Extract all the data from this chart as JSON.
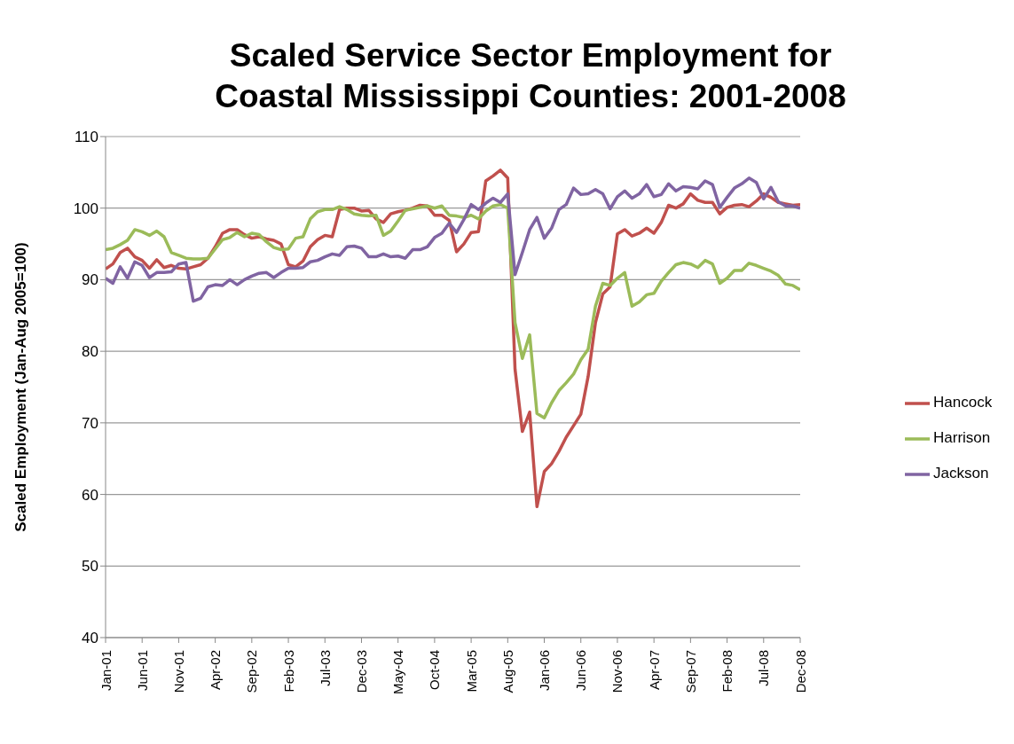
{
  "chart_data": {
    "type": "line",
    "title": "Scaled Service Sector Employment for Coastal Mississippi Counties: 2001-2008",
    "ylabel": "Scaled Employment (Jan-Aug 2005=100)",
    "categories": [
      "Jan-01",
      null,
      null,
      null,
      null,
      "Jun-01",
      null,
      null,
      null,
      null,
      "Nov-01",
      null,
      null,
      null,
      null,
      "Apr-02",
      null,
      null,
      null,
      null,
      "Sep-02",
      null,
      null,
      null,
      null,
      "Feb-03",
      null,
      null,
      null,
      null,
      "Jul-03",
      null,
      null,
      null,
      null,
      "Dec-03",
      null,
      null,
      null,
      null,
      "May-04",
      null,
      null,
      null,
      null,
      "Oct-04",
      null,
      null,
      null,
      null,
      "Mar-05",
      null,
      null,
      null,
      null,
      "Aug-05",
      null,
      null,
      null,
      null,
      "Jan-06",
      null,
      null,
      null,
      null,
      "Jun-06",
      null,
      null,
      null,
      null,
      "Nov-06",
      null,
      null,
      null,
      null,
      "Apr-07",
      null,
      null,
      null,
      null,
      "Sep-07",
      null,
      null,
      null,
      null,
      "Feb-08",
      null,
      null,
      null,
      null,
      "Jul-08",
      null,
      null,
      null,
      null,
      "Dec-08"
    ],
    "series": [
      {
        "name": "Hancock",
        "color": "#c0504d",
        "values": [
          91.5,
          92.2,
          93.8,
          94.4,
          93.2,
          92.7,
          91.6,
          92.8,
          91.7,
          92.0,
          91.6,
          91.5,
          91.8,
          92.1,
          93.0,
          94.6,
          96.5,
          97.0,
          97.0,
          96.3,
          95.8,
          96.0,
          95.7,
          95.5,
          95.0,
          92.1,
          91.8,
          92.6,
          94.6,
          95.6,
          96.2,
          96.0,
          99.8,
          100.0,
          100.0,
          99.6,
          99.7,
          98.5,
          98.0,
          99.2,
          99.5,
          99.7,
          100.0,
          100.4,
          100.3,
          99.0,
          99.0,
          98.3,
          93.9,
          95.0,
          96.6,
          96.7,
          103.8,
          104.5,
          105.3,
          104.2,
          77.5,
          68.8,
          71.5,
          58.3,
          63.2,
          64.3,
          66.0,
          68.0,
          69.6,
          71.2,
          76.5,
          84.0,
          88.0,
          89.0,
          96.4,
          97.0,
          96.1,
          96.5,
          97.2,
          96.5,
          98.0,
          100.4,
          100.0,
          100.6,
          102.0,
          101.1,
          100.8,
          100.8,
          99.2,
          100.1,
          100.4,
          100.5,
          100.2,
          101.0,
          102.0,
          101.5,
          100.8,
          100.6,
          100.4,
          100.5
        ]
      },
      {
        "name": "Harrison",
        "color": "#9bbb59",
        "values": [
          94.2,
          94.4,
          94.9,
          95.5,
          97.0,
          96.7,
          96.2,
          96.8,
          96.0,
          93.8,
          93.4,
          93.0,
          92.9,
          92.9,
          93.0,
          94.3,
          95.6,
          95.9,
          96.6,
          96.0,
          96.5,
          96.3,
          95.3,
          94.5,
          94.2,
          94.3,
          95.8,
          96.0,
          98.5,
          99.5,
          99.8,
          99.8,
          100.2,
          99.8,
          99.2,
          99.0,
          98.9,
          99.0,
          96.2,
          96.8,
          98.2,
          99.7,
          99.9,
          100.1,
          100.3,
          100.0,
          100.3,
          99.0,
          98.9,
          98.7,
          99.0,
          98.5,
          99.6,
          100.3,
          100.5,
          100.0,
          84.0,
          79.0,
          82.3,
          71.3,
          70.7,
          72.8,
          74.5,
          75.6,
          76.8,
          78.8,
          80.3,
          86.3,
          89.5,
          89.2,
          90.2,
          91.0,
          86.3,
          86.9,
          87.9,
          88.1,
          89.8,
          91.0,
          92.1,
          92.4,
          92.2,
          91.7,
          92.7,
          92.2,
          89.5,
          90.2,
          91.3,
          91.3,
          92.3,
          92.0,
          91.6,
          91.2,
          90.6,
          89.4,
          89.2,
          88.6
        ]
      },
      {
        "name": "Jackson",
        "color": "#8064a2",
        "values": [
          90.2,
          89.5,
          91.8,
          90.2,
          92.5,
          92.0,
          90.3,
          91.0,
          91.0,
          91.1,
          92.2,
          92.4,
          87.0,
          87.4,
          89.0,
          89.3,
          89.2,
          90.0,
          89.3,
          90.0,
          90.5,
          90.9,
          91.0,
          90.3,
          91.0,
          91.6,
          91.6,
          91.7,
          92.5,
          92.7,
          93.2,
          93.6,
          93.4,
          94.6,
          94.7,
          94.4,
          93.2,
          93.2,
          93.6,
          93.2,
          93.3,
          93.0,
          94.2,
          94.2,
          94.6,
          95.9,
          96.5,
          97.9,
          96.6,
          98.4,
          100.5,
          99.8,
          100.7,
          101.4,
          100.8,
          102.0,
          90.7,
          93.8,
          97.0,
          98.7,
          95.8,
          97.2,
          99.8,
          100.5,
          102.8,
          101.9,
          102.0,
          102.6,
          102.0,
          99.9,
          101.6,
          102.4,
          101.4,
          102.0,
          103.3,
          101.6,
          101.9,
          103.4,
          102.4,
          103.0,
          102.9,
          102.7,
          103.8,
          103.3,
          100.1,
          101.5,
          102.8,
          103.4,
          104.2,
          103.6,
          101.3,
          102.9,
          100.9,
          100.3,
          100.3,
          100.0
        ]
      }
    ],
    "ylim": [
      40,
      110
    ],
    "yticks": [
      40,
      50,
      60,
      70,
      80,
      90,
      100,
      110
    ],
    "grid": "y",
    "legend": "right",
    "marker": "none",
    "line_style": "solid"
  }
}
